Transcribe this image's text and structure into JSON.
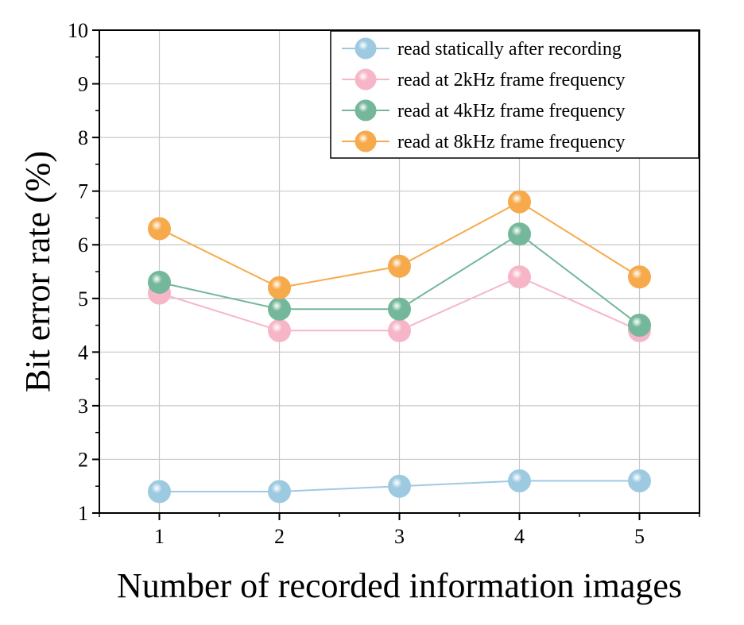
{
  "chart_data": {
    "type": "line",
    "xlabel": "Number of recorded information images",
    "ylabel": "Bit error rate (%)",
    "x": [
      1,
      2,
      3,
      4,
      5
    ],
    "x_ticks": [
      "1",
      "2",
      "3",
      "4",
      "5"
    ],
    "xlim": [
      0.5,
      5.5
    ],
    "ylim": [
      1,
      10
    ],
    "y_ticks": [
      "1",
      "2",
      "3",
      "4",
      "5",
      "6",
      "7",
      "8",
      "9",
      "10"
    ],
    "grid": true,
    "legend_position": "top-right",
    "series": [
      {
        "name": "read statically after recording",
        "color": "#9ecae1",
        "values": [
          1.4,
          1.4,
          1.5,
          1.6,
          1.6
        ]
      },
      {
        "name": "read at 2kHz frame frequency",
        "color": "#f7b6c8",
        "values": [
          5.1,
          4.4,
          4.4,
          5.4,
          4.4
        ]
      },
      {
        "name": "read at 4kHz frame frequency",
        "color": "#74b79a",
        "values": [
          5.3,
          4.8,
          4.8,
          6.2,
          4.5
        ]
      },
      {
        "name": "read at 8kHz frame frequency",
        "color": "#f6aa4c",
        "values": [
          6.3,
          5.2,
          5.6,
          6.8,
          5.4
        ]
      }
    ]
  }
}
